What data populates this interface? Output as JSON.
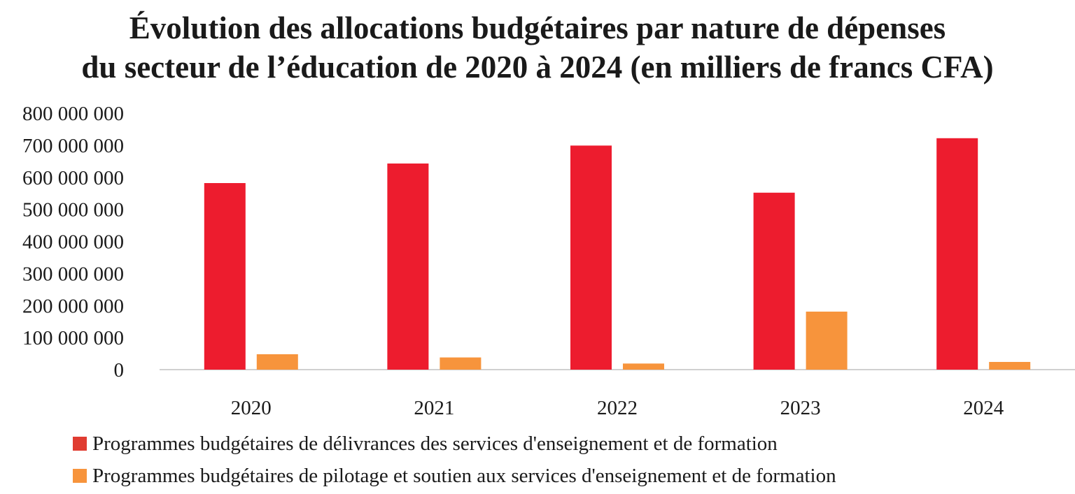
{
  "chart_data": {
    "type": "bar",
    "title_lines": [
      "Évolution des allocations budgétaires par nature de dépenses",
      "du secteur de l’éducation de 2020 à 2024 (en milliers de francs CFA)"
    ],
    "categories": [
      "2020",
      "2021",
      "2022",
      "2023",
      "2024"
    ],
    "series": [
      {
        "name": "Programmes budgétaires de délivrances des services d'enseignement et de formation",
        "color": "#ED1C2E",
        "legend_color": "#E03C31",
        "values": [
          582000000,
          643000000,
          699000000,
          552000000,
          722000000
        ]
      },
      {
        "name": "Programmes budgétaires de pilotage et soutien aux services d'enseignement et de formation",
        "color": "#F7943C",
        "legend_color": "#F7943C",
        "values": [
          48000000,
          38000000,
          19000000,
          181000000,
          24000000
        ]
      }
    ],
    "ylim": [
      0,
      800000000
    ],
    "yticks": [
      "0",
      "100 000 000",
      "200 000 000",
      "300 000 000",
      "400 000 000",
      "500 000 000",
      "600 000 000",
      "700 000 000",
      "800 000 000"
    ],
    "grid": false,
    "legend_position": "bottom"
  }
}
